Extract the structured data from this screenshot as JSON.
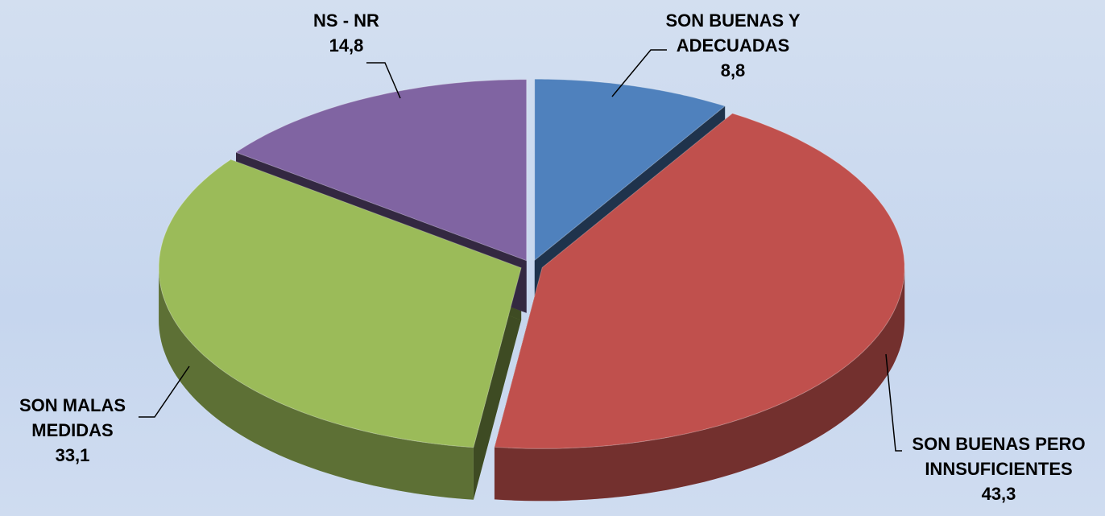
{
  "chart_data": {
    "type": "pie3d",
    "categories": [
      "SON BUENAS Y ADECUADAS",
      "SON BUENAS PERO INNSUFICIENTES",
      "SON MALAS MEDIDAS",
      "NS - NR"
    ],
    "values": [
      8.8,
      43.3,
      33.1,
      14.8
    ],
    "value_labels": [
      "8,8",
      "43,3",
      "33,1",
      "14,8"
    ],
    "colors": [
      "#4f81bd",
      "#c0504d",
      "#9bbb59",
      "#8064a2"
    ]
  }
}
